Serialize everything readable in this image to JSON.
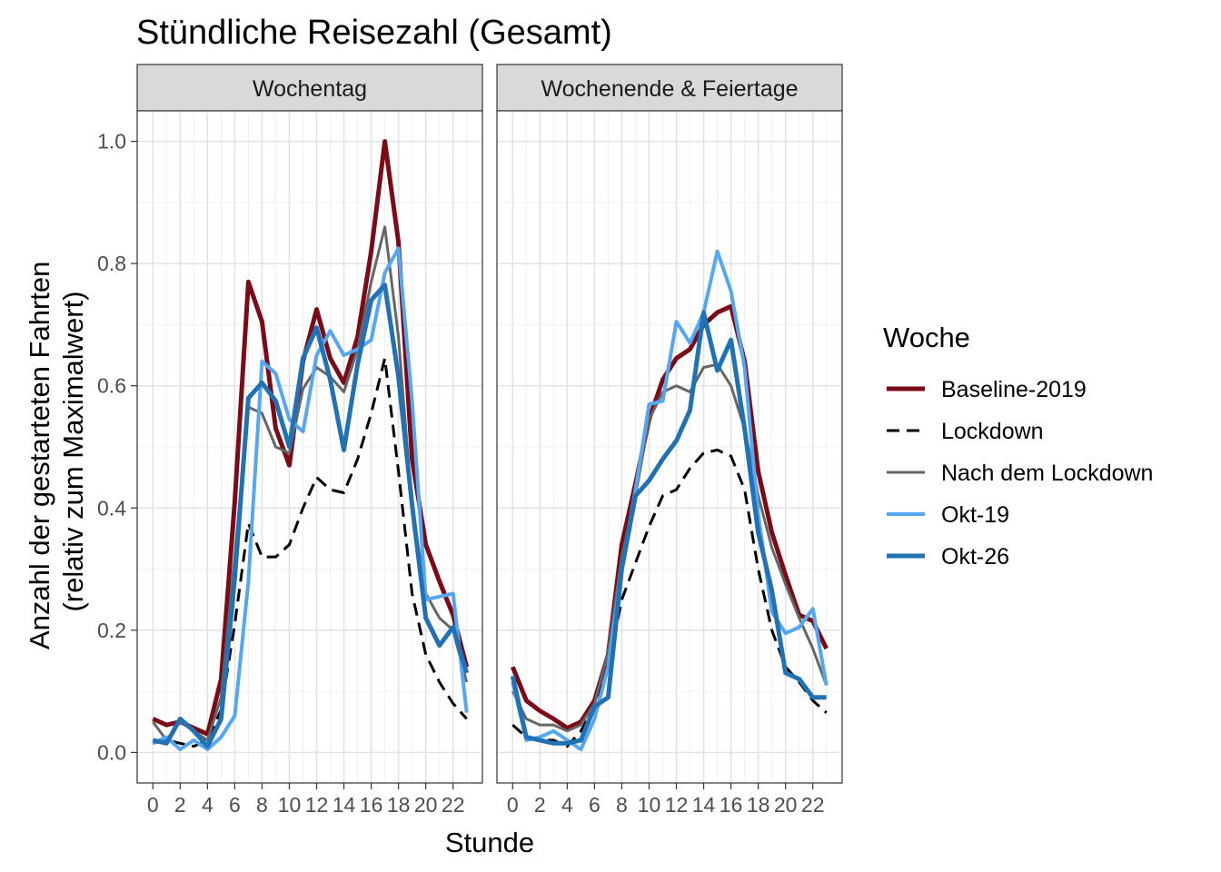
{
  "chart_data": {
    "type": "line",
    "title": "Stündliche Reisezahl (Gesamt)",
    "xlabel": "Stunde",
    "ylabel_lines": [
      "Anzahl der gestarteten Fahrten",
      "(relativ zum Maximalwert)"
    ],
    "xlim": [
      -1.15,
      24.15
    ],
    "ylim": [
      -0.05,
      1.05
    ],
    "x_ticks": [
      0,
      2,
      4,
      6,
      8,
      10,
      12,
      14,
      16,
      18,
      20,
      22
    ],
    "y_ticks": [
      0.0,
      0.2,
      0.4,
      0.6,
      0.8,
      1.0
    ],
    "y_tick_labels": [
      "0.0",
      "0.2",
      "0.4",
      "0.6",
      "0.8",
      "1.0"
    ],
    "grid": true,
    "legend": {
      "title": "Woche",
      "position": "right",
      "entries": [
        "Baseline-2019",
        "Lockdown",
        "Nach dem Lockdown",
        "Okt-19",
        "Okt-26"
      ]
    },
    "series_styles": [
      {
        "name": "Baseline-2019",
        "color": "#7b0c17",
        "width": 5,
        "dash": ""
      },
      {
        "name": "Lockdown",
        "color": "#000000",
        "width": 3,
        "dash": "14,8"
      },
      {
        "name": "Nach dem Lockdown",
        "color": "#666666",
        "width": 3,
        "dash": ""
      },
      {
        "name": "Okt-19",
        "color": "#56a7f1",
        "width": 4,
        "dash": ""
      },
      {
        "name": "Okt-26",
        "color": "#2171b5",
        "width": 5,
        "dash": ""
      }
    ],
    "x": [
      0,
      1,
      2,
      3,
      4,
      5,
      6,
      7,
      8,
      9,
      10,
      11,
      12,
      13,
      14,
      15,
      16,
      17,
      18,
      19,
      20,
      21,
      22,
      23
    ],
    "panels": [
      {
        "label": "Wochentag",
        "series": [
          {
            "name": "Baseline-2019",
            "values": [
              0.055,
              0.045,
              0.05,
              0.04,
              0.03,
              0.12,
              0.41,
              0.77,
              0.705,
              0.53,
              0.47,
              0.64,
              0.725,
              0.645,
              0.605,
              0.68,
              0.82,
              1.0,
              0.835,
              0.48,
              0.34,
              0.28,
              0.225,
              0.14
            ]
          },
          {
            "name": "Lockdown",
            "values": [
              0.015,
              0.02,
              0.015,
              0.01,
              0.02,
              0.07,
              0.21,
              0.375,
              0.32,
              0.32,
              0.34,
              0.4,
              0.45,
              0.43,
              0.425,
              0.48,
              0.555,
              0.645,
              0.46,
              0.26,
              0.16,
              0.115,
              0.08,
              0.055
            ]
          },
          {
            "name": "Nach dem Lockdown",
            "values": [
              0.05,
              0.02,
              0.05,
              0.035,
              0.02,
              0.09,
              0.32,
              0.565,
              0.555,
              0.5,
              0.49,
              0.595,
              0.63,
              0.615,
              0.59,
              0.66,
              0.77,
              0.86,
              0.68,
              0.4,
              0.26,
              0.22,
              0.2,
              0.115
            ]
          },
          {
            "name": "Okt-19",
            "values": [
              0.015,
              0.025,
              0.005,
              0.02,
              0.005,
              0.025,
              0.06,
              0.28,
              0.64,
              0.62,
              0.545,
              0.525,
              0.65,
              0.69,
              0.65,
              0.66,
              0.675,
              0.785,
              0.825,
              0.575,
              0.25,
              0.255,
              0.26,
              0.065
            ]
          },
          {
            "name": "Okt-26",
            "values": [
              0.02,
              0.015,
              0.055,
              0.035,
              0.01,
              0.055,
              0.285,
              0.58,
              0.605,
              0.575,
              0.5,
              0.645,
              0.695,
              0.61,
              0.495,
              0.635,
              0.74,
              0.765,
              0.615,
              0.405,
              0.22,
              0.175,
              0.205,
              0.13
            ]
          }
        ]
      },
      {
        "label": "Wochenende & Feiertage",
        "series": [
          {
            "name": "Baseline-2019",
            "values": [
              0.14,
              0.085,
              0.068,
              0.055,
              0.04,
              0.05,
              0.085,
              0.16,
              0.34,
              0.44,
              0.545,
              0.61,
              0.645,
              0.66,
              0.7,
              0.72,
              0.73,
              0.64,
              0.46,
              0.36,
              0.29,
              0.225,
              0.215,
              0.17
            ]
          },
          {
            "name": "Lockdown",
            "values": [
              0.045,
              0.025,
              0.02,
              0.02,
              0.01,
              0.035,
              0.075,
              0.14,
              0.25,
              0.31,
              0.37,
              0.42,
              0.43,
              0.465,
              0.49,
              0.495,
              0.485,
              0.43,
              0.3,
              0.2,
              0.14,
              0.115,
              0.085,
              0.065
            ]
          },
          {
            "name": "Nach dem Lockdown",
            "values": [
              0.1,
              0.055,
              0.045,
              0.045,
              0.035,
              0.045,
              0.08,
              0.165,
              0.32,
              0.42,
              0.545,
              0.59,
              0.6,
              0.59,
              0.63,
              0.635,
              0.6,
              0.53,
              0.42,
              0.335,
              0.275,
              0.22,
              0.17,
              0.11
            ]
          },
          {
            "name": "Okt-19",
            "values": [
              0.115,
              0.02,
              0.025,
              0.035,
              0.02,
              0.005,
              0.055,
              0.14,
              0.3,
              0.43,
              0.57,
              0.575,
              0.705,
              0.67,
              0.72,
              0.82,
              0.755,
              0.63,
              0.39,
              0.23,
              0.195,
              0.205,
              0.235,
              0.11
            ]
          },
          {
            "name": "Okt-26",
            "values": [
              0.125,
              0.025,
              0.02,
              0.015,
              0.015,
              0.02,
              0.075,
              0.09,
              0.3,
              0.42,
              0.445,
              0.48,
              0.51,
              0.56,
              0.72,
              0.625,
              0.675,
              0.53,
              0.36,
              0.265,
              0.13,
              0.12,
              0.09,
              0.09
            ]
          }
        ]
      }
    ]
  }
}
